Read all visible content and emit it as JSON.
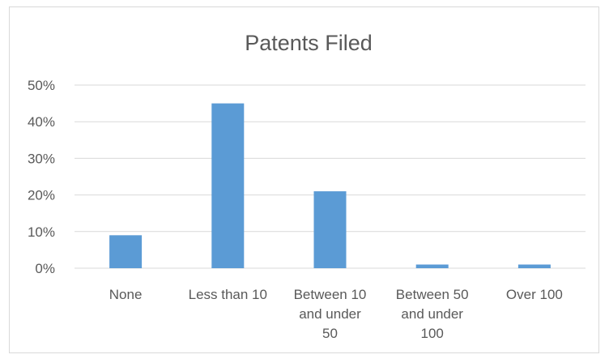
{
  "chart_data": {
    "type": "bar",
    "title": "Patents Filed",
    "xlabel": "",
    "ylabel": "",
    "categories": [
      "None",
      "Less than 10",
      "Between 10 and under 50",
      "Between 50 and under 100",
      "Over 100"
    ],
    "category_label_lines": [
      [
        "None"
      ],
      [
        "Less than 10"
      ],
      [
        "Between 10",
        "and under",
        "50"
      ],
      [
        "Between 50",
        "and under",
        "100"
      ],
      [
        "Over 100"
      ]
    ],
    "values": [
      9,
      45,
      21,
      1,
      1
    ],
    "value_unit": "%",
    "ylim": [
      0,
      50
    ],
    "yticks": [
      {
        "value": 0,
        "label": "0%"
      },
      {
        "value": 10,
        "label": "10%"
      },
      {
        "value": 20,
        "label": "20%"
      },
      {
        "value": 30,
        "label": "30%"
      },
      {
        "value": 40,
        "label": "40%"
      },
      {
        "value": 50,
        "label": "50%"
      }
    ],
    "grid": true,
    "legend": "none",
    "colors": {
      "bar": "#5b9bd5",
      "grid": "#d9d9d9",
      "text": "#595959",
      "border": "#d9d9d9"
    }
  }
}
